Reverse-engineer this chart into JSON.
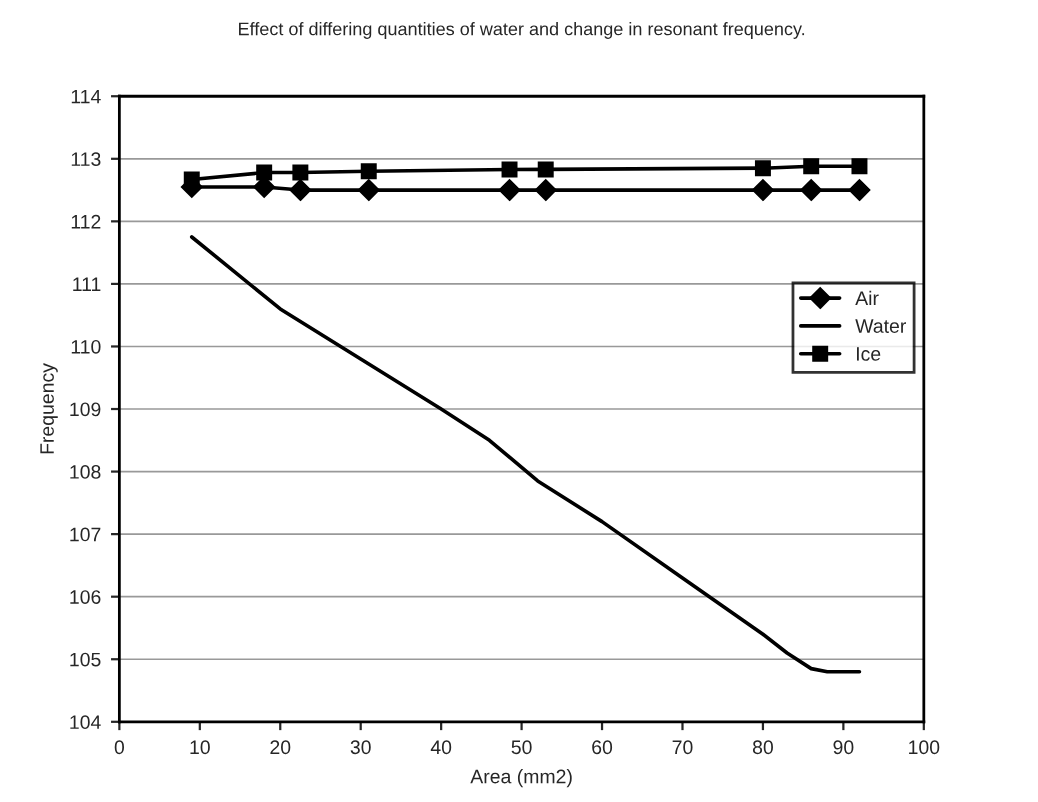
{
  "chart_data": {
    "type": "line",
    "title": "Effect of differing quantities of water and change in resonant frequency.",
    "xlabel": "Area (mm2)",
    "ylabel": "Frequency",
    "xlim": [
      0,
      100
    ],
    "xticks": [
      0,
      10,
      20,
      30,
      40,
      50,
      60,
      70,
      80,
      90,
      100
    ],
    "ylim": [
      104,
      114
    ],
    "yticks": [
      104,
      105,
      106,
      107,
      108,
      109,
      110,
      111,
      112,
      113,
      114
    ],
    "grid": "y",
    "legend": "right",
    "series": [
      {
        "name": "Air",
        "color": "#000000",
        "marker": "diamond",
        "x": [
          9,
          18,
          22.5,
          31,
          48.5,
          53,
          80,
          86,
          92
        ],
        "values": [
          112.55,
          112.55,
          112.5,
          112.5,
          112.5,
          112.5,
          112.5,
          112.5,
          112.5
        ]
      },
      {
        "name": "Water",
        "color": "#000000",
        "marker": "none",
        "x": [
          9,
          20,
          30,
          40,
          46,
          52,
          60,
          70,
          80,
          83,
          86,
          88,
          92
        ],
        "values": [
          111.75,
          110.6,
          109.8,
          109.0,
          108.5,
          107.85,
          107.2,
          106.3,
          105.4,
          105.1,
          104.85,
          104.8,
          104.8
        ]
      },
      {
        "name": "Ice",
        "color": "#000000",
        "marker": "square",
        "x": [
          9,
          18,
          22.5,
          31,
          48.5,
          53,
          80,
          86,
          92
        ],
        "values": [
          112.67,
          112.78,
          112.78,
          112.8,
          112.83,
          112.83,
          112.85,
          112.88,
          112.88
        ]
      }
    ]
  }
}
